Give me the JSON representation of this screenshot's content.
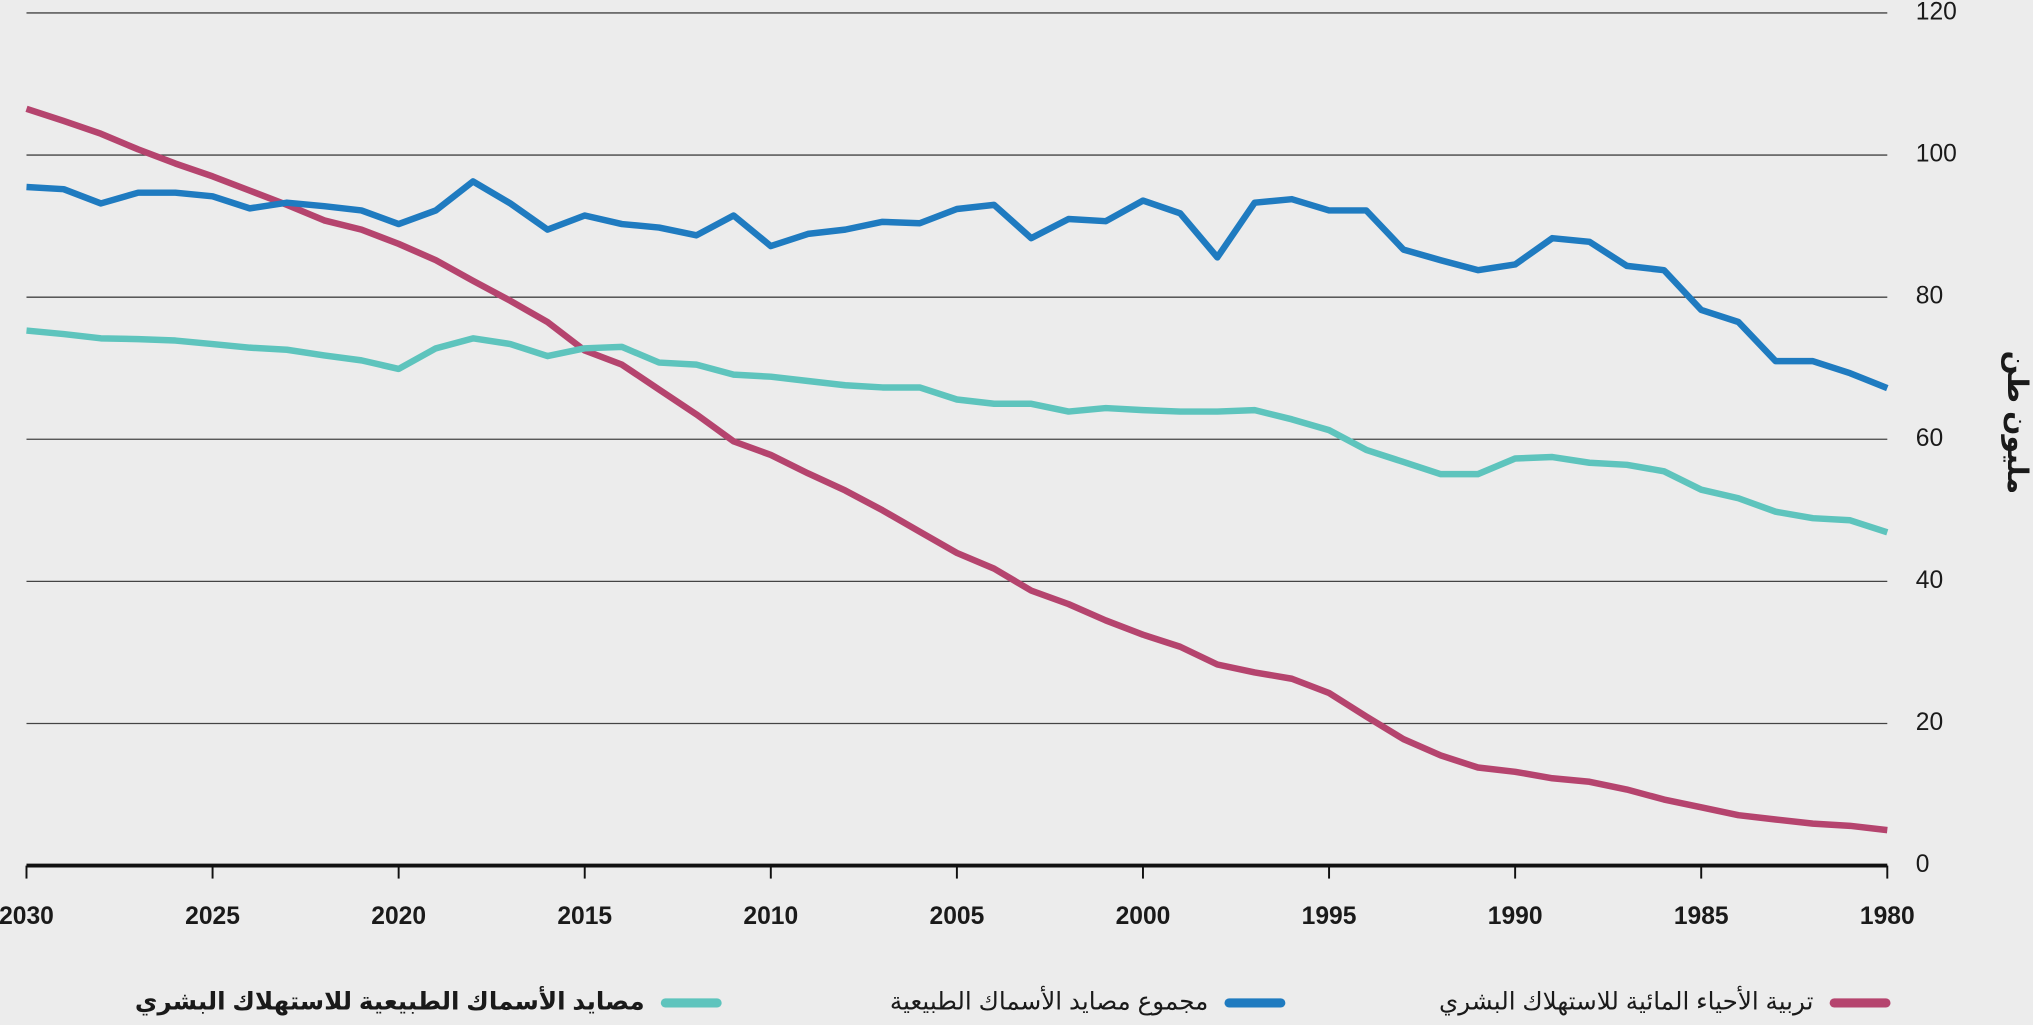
{
  "chart_data": {
    "type": "line",
    "y_label": "مليون طن",
    "x": [
      2030,
      2029,
      2028,
      2027,
      2026,
      2025,
      2024,
      2023,
      2022,
      2021,
      2020,
      2019,
      2018,
      2017,
      2016,
      2015,
      2014,
      2013,
      2012,
      2011,
      2010,
      2009,
      2008,
      2007,
      2006,
      2005,
      2004,
      2003,
      2002,
      2001,
      2000,
      1999,
      1998,
      1997,
      1996,
      1995,
      1994,
      1993,
      1992,
      1991,
      1990,
      1989,
      1988,
      1987,
      1986,
      1985,
      1984,
      1983,
      1982,
      1981,
      1980
    ],
    "xlim": [
      2030,
      1980
    ],
    "xticks": [
      2030,
      2025,
      2020,
      2015,
      2010,
      2005,
      2000,
      1995,
      1990,
      1985,
      1980
    ],
    "ylim": [
      0,
      120
    ],
    "yticks": [
      0,
      20,
      40,
      60,
      80,
      100,
      120
    ],
    "grid": true,
    "series": [
      {
        "name": "تربية الأحياء المائية للاستهلاك البشري",
        "color": "#b5446e",
        "values": [
          106.5,
          104.8,
          103,
          100.8,
          98.8,
          97,
          95,
          93,
          90.8,
          89.5,
          87.5,
          85.2,
          82.3,
          79.5,
          76.5,
          72.5,
          70.5,
          67,
          63.5,
          59.7,
          57.8,
          55.2,
          52.8,
          50,
          47,
          44,
          41.8,
          38.7,
          36.8,
          34.5,
          32.5,
          30.8,
          28.3,
          27.2,
          26.3,
          24.3,
          21,
          17.8,
          15.5,
          13.8,
          13.2,
          12.3,
          11.8,
          10.7,
          9.3,
          8.2,
          7.1,
          6.5,
          5.9,
          5.6,
          5.0
        ]
      },
      {
        "name": "مجموع مصايد الأسماك الطبيعية",
        "color": "#1f7bc0",
        "values": [
          95.5,
          95.2,
          93.2,
          94.7,
          94.7,
          94.2,
          92.5,
          93.3,
          92.8,
          92.2,
          90.3,
          92.2,
          96.3,
          93.2,
          89.5,
          91.5,
          90.3,
          89.8,
          88.7,
          91.5,
          87.2,
          88.9,
          89.5,
          90.6,
          90.4,
          92.4,
          93,
          88.3,
          91,
          90.7,
          93.6,
          91.8,
          85.6,
          93.3,
          93.8,
          92.2,
          92.2,
          86.7,
          85.2,
          83.8,
          84.6,
          88.3,
          87.8,
          84.4,
          83.8,
          78.2,
          76.5,
          71,
          71,
          69.3,
          67.2
        ]
      },
      {
        "name": "مصايد الأسماك الطبيعية للاستهلاك البشري",
        "color": "#5ec4bd",
        "values": [
          75.3,
          74.8,
          74.2,
          74.1,
          73.9,
          73.4,
          72.9,
          72.6,
          71.8,
          71.1,
          69.9,
          72.8,
          74.2,
          73.4,
          71.7,
          72.8,
          73,
          70.8,
          70.5,
          69.1,
          68.8,
          68.2,
          67.6,
          67.3,
          67.3,
          65.6,
          65,
          65,
          63.9,
          64.4,
          64.1,
          63.9,
          63.9,
          64.1,
          62.8,
          61.3,
          58.5,
          56.8,
          55.1,
          55.1,
          57.3,
          57.5,
          56.7,
          56.4,
          55.5,
          52.9,
          51.7,
          49.8,
          48.9,
          48.6,
          46.9
        ]
      }
    ]
  }
}
